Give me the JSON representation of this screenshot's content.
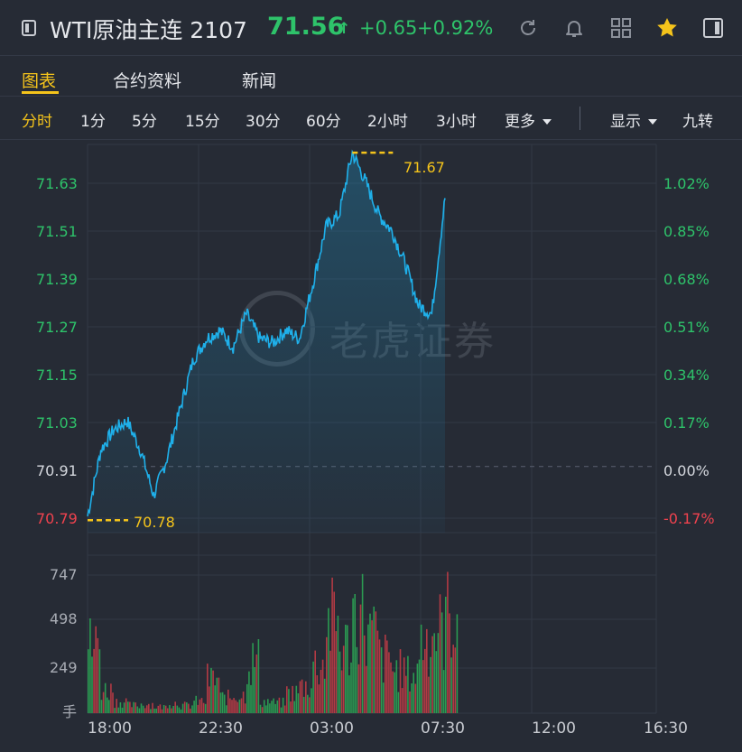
{
  "header": {
    "title": "WTI原油主连 2107",
    "price": "71.56",
    "arrow": "↑",
    "change": "+0.65",
    "change_pct": "+0.92%",
    "icons": [
      "refresh-icon",
      "bell-icon",
      "grid-icon",
      "star-icon",
      "sidebar-icon"
    ],
    "colors": {
      "up": "#2ec36a",
      "down": "#f0424e",
      "accent": "#f5c41b",
      "line": "#1fb0ea"
    }
  },
  "tabs": [
    {
      "label": "图表",
      "active": true
    },
    {
      "label": "合约资料",
      "active": false
    },
    {
      "label": "新闻",
      "active": false
    }
  ],
  "periods": [
    {
      "label": "分时",
      "active": true
    },
    {
      "label": "1分"
    },
    {
      "label": "5分"
    },
    {
      "label": "15分"
    },
    {
      "label": "30分"
    },
    {
      "label": "60分"
    },
    {
      "label": "2小时"
    },
    {
      "label": "3小时"
    },
    {
      "label": "更多"
    }
  ],
  "options": {
    "display": "显示",
    "nine": "九转"
  },
  "watermark": "老虎证券",
  "price_axis": [
    "71.63",
    "71.51",
    "71.39",
    "71.27",
    "71.15",
    "71.03",
    "70.91",
    "70.79"
  ],
  "pct_axis": [
    "1.02%",
    "0.85%",
    "0.68%",
    "0.51%",
    "0.34%",
    "0.17%",
    "0.00%",
    "-0.17%"
  ],
  "volume_axis": [
    "747",
    "498",
    "249",
    "手"
  ],
  "time_axis": [
    "18:00",
    "22:30",
    "03:00",
    "07:30",
    "12:00",
    "16:30"
  ],
  "high_label": "71.67",
  "low_label": "70.78",
  "chart_data": {
    "type": "line",
    "prev_close": 70.91,
    "high": 71.67,
    "low": 70.78,
    "last": 71.56,
    "ylim": [
      70.75,
      71.69
    ],
    "x": [
      "18:00",
      "18:30",
      "19:00",
      "19:30",
      "20:00",
      "20:30",
      "21:00",
      "21:30",
      "22:00",
      "22:30",
      "23:00",
      "23:30",
      "00:00",
      "00:30",
      "01:00",
      "01:30",
      "02:00",
      "02:30",
      "03:00",
      "03:30",
      "04:00",
      "04:30",
      "05:00",
      "05:30",
      "06:00",
      "06:30",
      "07:00",
      "07:30"
    ],
    "series": [
      {
        "values": [
          70.79,
          70.95,
          71.0,
          71.02,
          70.95,
          70.84,
          70.93,
          71.05,
          71.17,
          71.22,
          71.24,
          71.2,
          71.28,
          71.22,
          71.21,
          71.24,
          71.22,
          71.35,
          71.49,
          71.52,
          71.67,
          71.6,
          71.52,
          71.48,
          71.4,
          71.3,
          71.28,
          71.56
        ]
      }
    ],
    "volume": {
      "ylim": [
        0,
        800
      ],
      "values": [
        520,
        180,
        90,
        60,
        70,
        50,
        80,
        60,
        90,
        260,
        120,
        140,
        400,
        90,
        80,
        160,
        210,
        380,
        700,
        520,
        780,
        600,
        420,
        330,
        300,
        580,
        640,
        760
      ]
    }
  }
}
